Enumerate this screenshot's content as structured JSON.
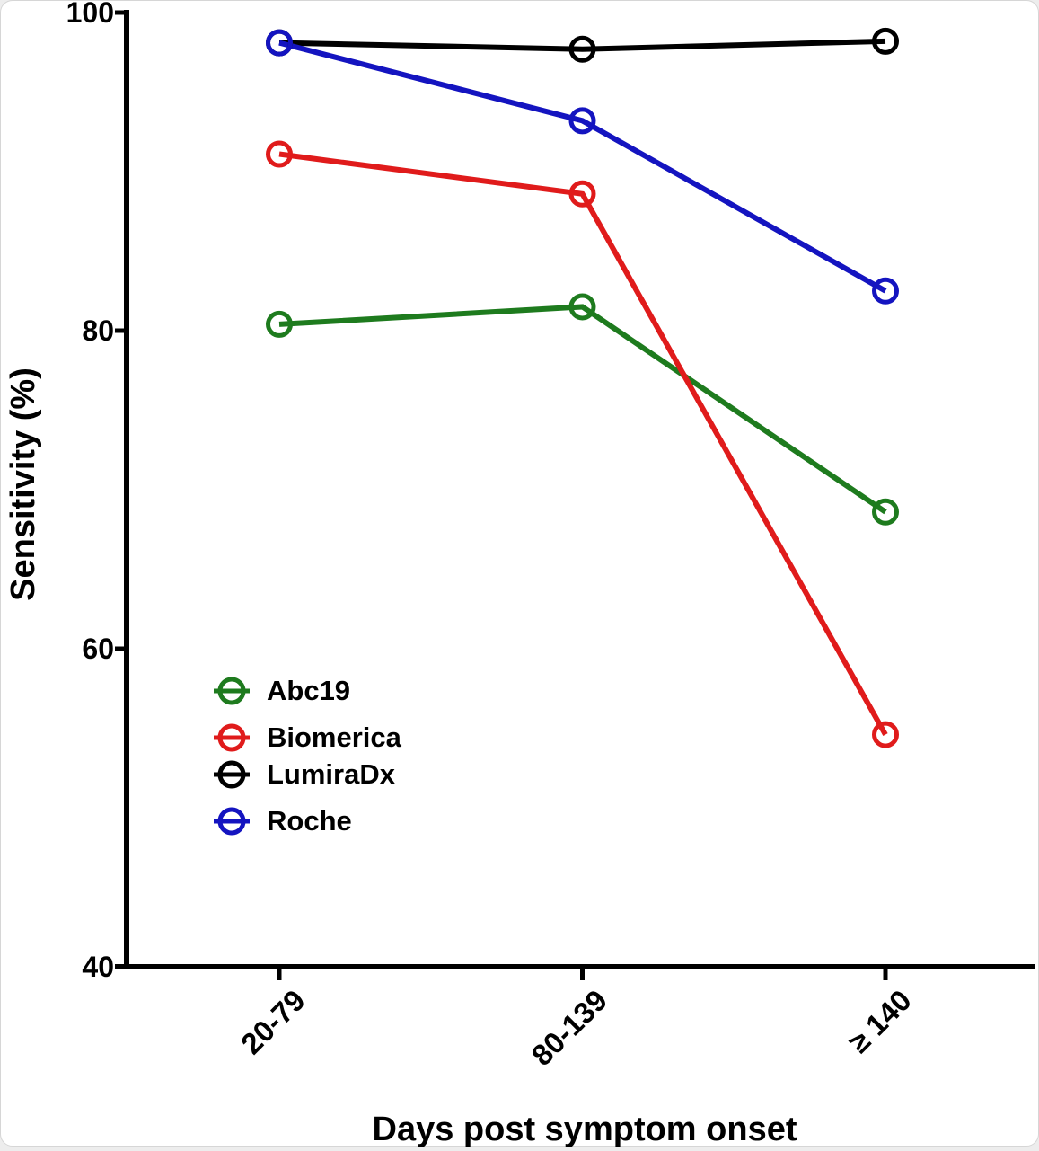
{
  "chart_data": {
    "type": "line",
    "title": "",
    "xlabel": "Days post symptom onset",
    "ylabel": "Sensitivity (%)",
    "categories": [
      "20-79",
      "80-139",
      "≥ 140"
    ],
    "series": [
      {
        "name": "Abc19",
        "color": "#1e7b1e",
        "values": [
          80.4,
          81.5,
          68.6
        ]
      },
      {
        "name": "Biomerica",
        "color": "#e01b1b",
        "values": [
          91.1,
          88.6,
          54.6
        ]
      },
      {
        "name": "LumiraDx",
        "color": "#000000",
        "values": [
          98.1,
          97.7,
          98.2
        ]
      },
      {
        "name": "Roche",
        "color": "#1414c0",
        "values": [
          98.1,
          93.2,
          82.5
        ]
      }
    ],
    "ylim": [
      40,
      100
    ],
    "yticks": [
      100,
      80,
      60,
      40
    ],
    "ytick_labels": [
      "100",
      "80",
      "60",
      "40"
    ],
    "grid": false,
    "legend_position": "inside-lower-left",
    "marker": "open-circle"
  }
}
